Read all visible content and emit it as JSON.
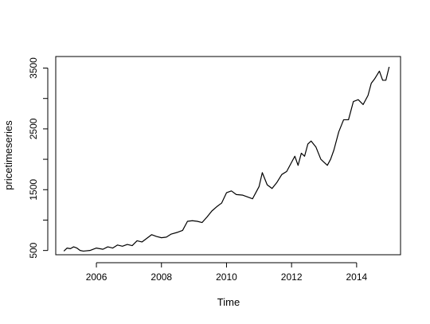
{
  "chart_data": {
    "type": "line",
    "title": "",
    "xlabel": "Time",
    "ylabel": "pricetimeseries",
    "xlim": [
      2004.75,
      2015.35
    ],
    "ylim": [
      430,
      3690
    ],
    "x_ticks": [
      2006,
      2008,
      2010,
      2012,
      2014
    ],
    "x_tick_labels": [
      "2006",
      "2008",
      "2010",
      "2012",
      "2014"
    ],
    "y_ticks": [
      500,
      1000,
      1500,
      2000,
      2500,
      3000,
      3500
    ],
    "y_tick_labels": [
      "500",
      "",
      "1500",
      "",
      "2500",
      "",
      "3500"
    ],
    "grid": false,
    "legend": "none",
    "line_color": "#000000",
    "series": [
      {
        "x": [
          2005.0,
          2005.1,
          2005.2,
          2005.3,
          2005.4,
          2005.5,
          2005.6,
          2005.8,
          2006.0,
          2006.2,
          2006.35,
          2006.5,
          2006.65,
          2006.8,
          2006.95,
          2007.1,
          2007.25,
          2007.4,
          2007.55,
          2007.7,
          2007.85,
          2008.0,
          2008.15,
          2008.3,
          2008.5,
          2008.65,
          2008.8,
          2008.95,
          2009.1,
          2009.25,
          2009.4,
          2009.55,
          2009.7,
          2009.85,
          2010.0,
          2010.15,
          2010.3,
          2010.5,
          2010.65,
          2010.8,
          2010.9,
          2011.0,
          2011.1,
          2011.25,
          2011.4,
          2011.55,
          2011.7,
          2011.85,
          2012.0,
          2012.1,
          2012.2,
          2012.3,
          2012.4,
          2012.5,
          2012.6,
          2012.75,
          2012.9,
          2013.0,
          2013.1,
          2013.2,
          2013.3,
          2013.45,
          2013.6,
          2013.75,
          2013.9,
          2014.05,
          2014.2,
          2014.35,
          2014.45,
          2014.55,
          2014.7,
          2014.8,
          2014.9,
          2015.0
        ],
        "y": [
          490,
          540,
          530,
          560,
          540,
          500,
          490,
          500,
          540,
          520,
          560,
          540,
          590,
          570,
          600,
          580,
          660,
          640,
          700,
          760,
          730,
          710,
          720,
          770,
          800,
          830,
          980,
          990,
          980,
          960,
          1050,
          1150,
          1220,
          1280,
          1450,
          1480,
          1420,
          1410,
          1380,
          1350,
          1450,
          1550,
          1780,
          1580,
          1520,
          1620,
          1750,
          1800,
          1950,
          2050,
          1900,
          2100,
          2050,
          2250,
          2300,
          2200,
          2000,
          1950,
          1900,
          2000,
          2150,
          2450,
          2650,
          2650,
          2950,
          2980,
          2900,
          3050,
          3250,
          3320,
          3450,
          3300,
          3300,
          3520
        ]
      }
    ]
  }
}
